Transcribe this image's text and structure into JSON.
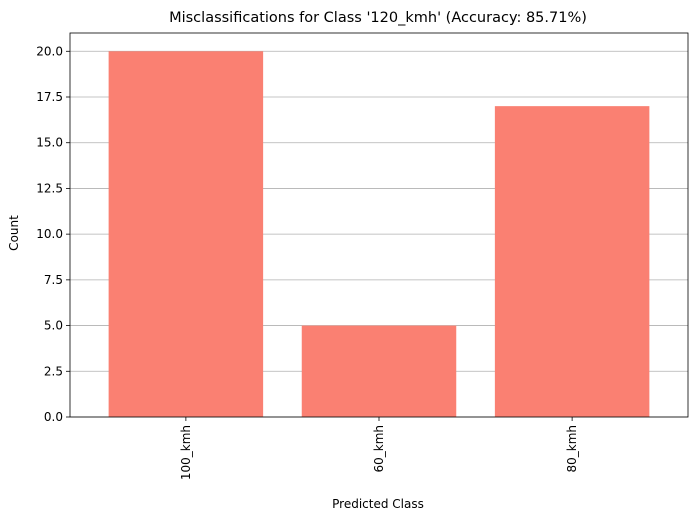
{
  "chart_data": {
    "type": "bar",
    "title": "Misclassifications for Class '120_kmh' (Accuracy: 85.71%)",
    "xlabel": "Predicted Class",
    "ylabel": "Count",
    "categories": [
      "100_kmh",
      "60_kmh",
      "80_kmh"
    ],
    "values": [
      20,
      5,
      17
    ],
    "ylim": [
      0,
      21
    ],
    "yticks": [
      "0.0",
      "2.5",
      "5.0",
      "7.5",
      "10.0",
      "12.5",
      "15.0",
      "17.5",
      "20.0"
    ],
    "ytick_values": [
      0,
      2.5,
      5,
      7.5,
      10,
      12.5,
      15,
      17.5,
      20
    ],
    "grid": "y",
    "bar_color": "#fa8072",
    "grid_color": "#b0b0b0",
    "xtick_rotation": "vertical"
  }
}
